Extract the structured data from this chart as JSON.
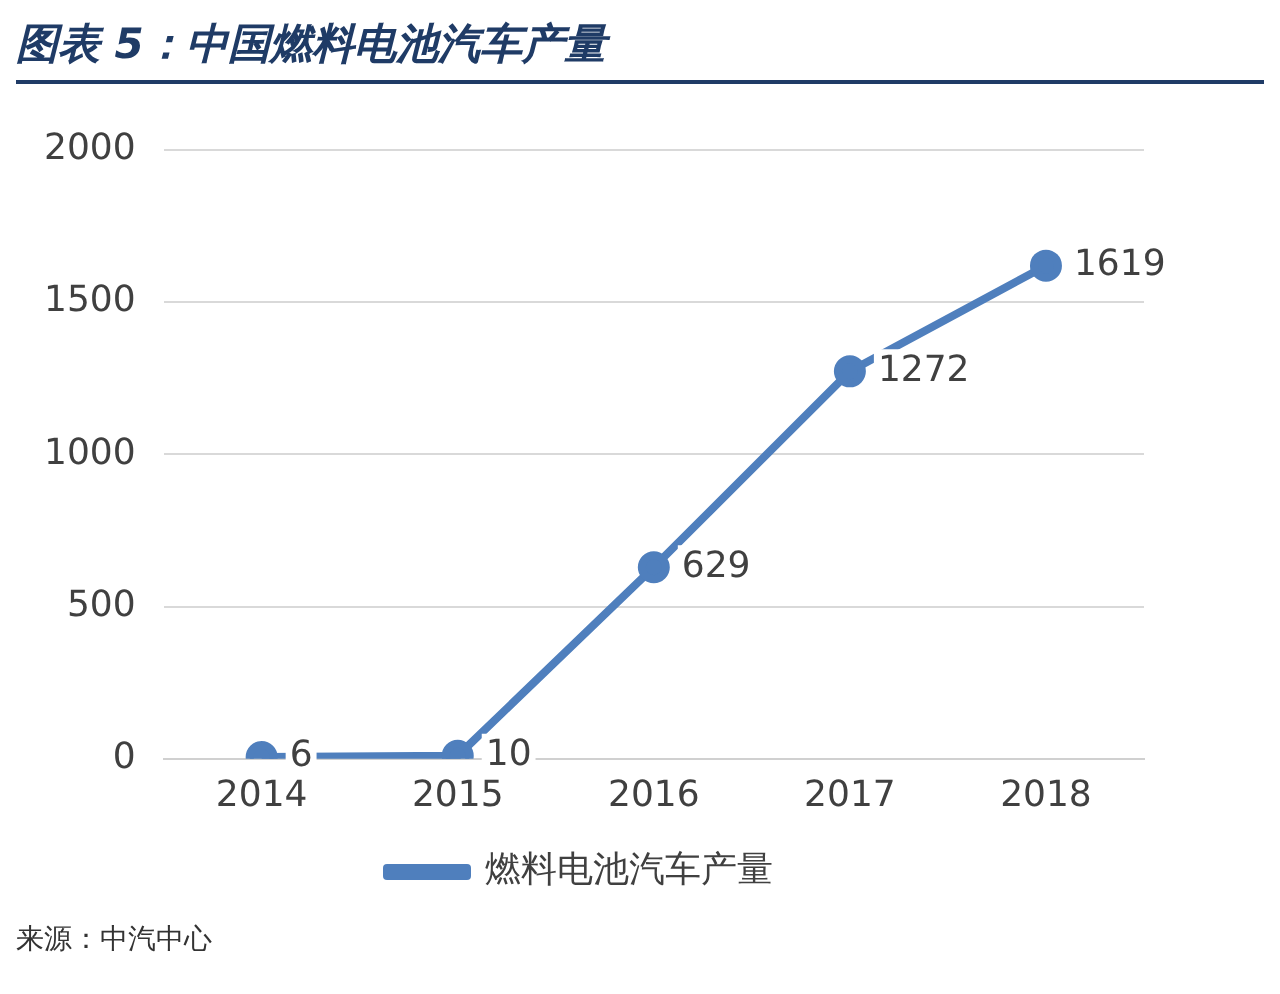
{
  "chart_data": {
    "type": "line",
    "title": "图表 5：中国燃料电池汽车产量",
    "categories": [
      "2014",
      "2015",
      "2016",
      "2017",
      "2018"
    ],
    "series": [
      {
        "name": "燃料电池汽车产量",
        "color": "#4f7fbd",
        "values": [
          6,
          10,
          629,
          1272,
          1619
        ]
      }
    ],
    "ylim": [
      0,
      2000
    ],
    "yticks": [
      0,
      500,
      1000,
      1500,
      2000
    ],
    "grid": "y",
    "legend": "bottom",
    "marker": "circle",
    "line_style": "solid",
    "data_labels": true,
    "annotations": [
      "来源：中汽中心"
    ]
  }
}
